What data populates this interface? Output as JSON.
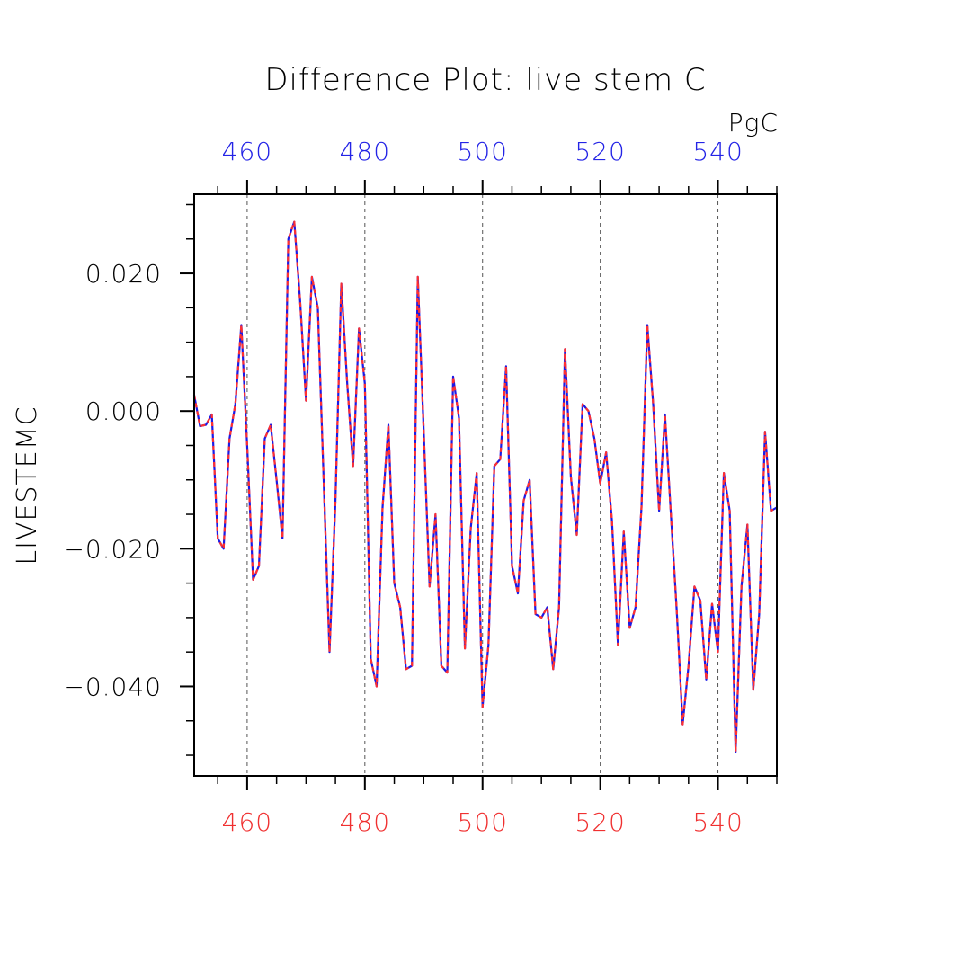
{
  "chart_data": {
    "type": "line",
    "title": "Difference Plot: live stem C",
    "units": "PgC",
    "ylabel": "LIVESTEMC",
    "xlabel": "",
    "xlim": [
      451,
      550
    ],
    "ylim": [
      -0.053,
      0.0315
    ],
    "x_ticks": [
      460,
      480,
      500,
      520,
      540
    ],
    "x_tick_labels": [
      "460",
      "480",
      "500",
      "520",
      "540"
    ],
    "y_ticks": [
      0.02,
      0.0,
      -0.02,
      -0.04
    ],
    "y_tick_labels": [
      "0.020",
      "0.000",
      "−0.020",
      "−0.040"
    ],
    "grid": "vertical dashed at major x ticks",
    "colors": {
      "top_axis": "#2424e6",
      "bottom_axis": "#f03030",
      "line_a": "#1a1ae6",
      "line_b": "#ff3030",
      "frame": "#000000"
    },
    "series": [
      {
        "x": [
          451,
          452,
          453,
          454,
          455,
          456,
          457,
          458,
          459,
          460,
          461,
          462,
          463,
          464,
          465,
          466,
          467,
          468,
          469,
          470,
          471,
          472,
          473,
          474,
          475,
          476,
          477,
          478,
          479,
          480,
          481,
          482,
          483,
          484,
          485,
          486,
          487,
          488,
          489,
          490,
          491,
          492,
          493,
          494,
          495,
          496,
          497,
          498,
          499,
          500,
          501,
          502,
          503,
          504,
          505,
          506,
          507,
          508,
          509,
          510,
          511,
          512,
          513,
          514,
          515,
          516,
          517,
          518,
          519,
          520,
          521,
          522,
          523,
          524,
          525,
          526,
          527,
          528,
          529,
          530,
          531,
          532,
          533,
          534,
          535,
          536,
          537,
          538,
          539,
          540,
          541,
          542,
          543,
          544,
          545,
          546,
          547,
          548,
          549,
          550
        ],
        "values": [
          0.0023,
          -0.0022,
          -0.002,
          -0.0005,
          -0.0185,
          -0.02,
          -0.004,
          0.001,
          0.0125,
          -0.005,
          -0.0245,
          -0.0225,
          -0.004,
          -0.002,
          -0.01,
          -0.0185,
          0.025,
          0.0275,
          0.016,
          0.0015,
          0.0195,
          0.015,
          -0.01,
          -0.035,
          -0.013,
          0.0185,
          0.004,
          -0.008,
          0.012,
          0.004,
          -0.036,
          -0.04,
          -0.014,
          -0.002,
          -0.025,
          -0.0285,
          -0.0375,
          -0.037,
          0.0195,
          -0.003,
          -0.0255,
          -0.015,
          -0.037,
          -0.038,
          0.005,
          -0.001,
          -0.0345,
          -0.017,
          -0.009,
          -0.043,
          -0.034,
          -0.008,
          -0.007,
          0.0065,
          -0.0225,
          -0.0265,
          -0.013,
          -0.01,
          -0.0295,
          -0.03,
          -0.0285,
          -0.0375,
          -0.0285,
          0.009,
          -0.0095,
          -0.018,
          0.001,
          0.0,
          -0.004,
          -0.0105,
          -0.006,
          -0.016,
          -0.034,
          -0.0175,
          -0.0315,
          -0.0285,
          -0.014,
          0.0125,
          0.001,
          -0.0145,
          -0.0005,
          -0.015,
          -0.029,
          -0.0455,
          -0.037,
          -0.0255,
          -0.0275,
          -0.039,
          -0.028,
          -0.035,
          -0.009,
          -0.0145,
          -0.0495,
          -0.0255,
          -0.0165,
          -0.0405,
          -0.0295,
          -0.003,
          -0.0145,
          -0.014
        ]
      }
    ]
  }
}
